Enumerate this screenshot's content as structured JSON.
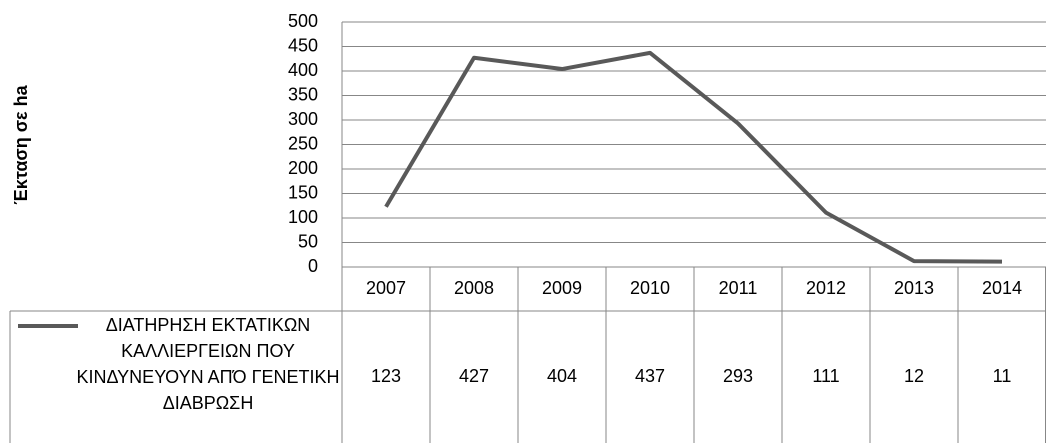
{
  "chart_data": {
    "type": "line",
    "y_label": "Έκταση σε ha",
    "categories": [
      "2007",
      "2008",
      "2009",
      "2010",
      "2011",
      "2012",
      "2013",
      "2014"
    ],
    "series": [
      {
        "name": "ΔΙΑΤΗΡΗΣΗ ΕΚΤΑΤΙΚΩΝ ΚΑΛΛΙΕΡΓΕΙΩΝ ΠΟΥ ΚΙΝΔΥΝΕΥΟΥΝ ΑΠΌ ΓΕΝΕΤΙΚΗ ΔΙΑΒΡΩΣΗ",
        "color": "#595959",
        "values": [
          123,
          427,
          404,
          437,
          293,
          111,
          12,
          11
        ]
      }
    ],
    "ylim": [
      0,
      500
    ],
    "yticks": [
      0,
      50,
      100,
      150,
      200,
      250,
      300,
      350,
      400,
      450,
      500
    ],
    "grid": true,
    "data_table": true
  }
}
